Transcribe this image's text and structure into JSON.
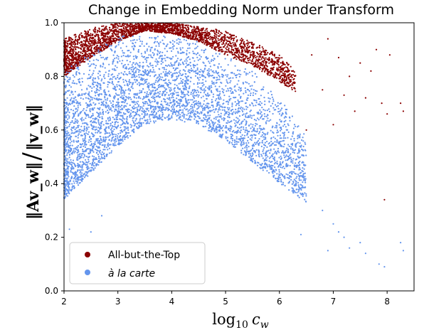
{
  "chart_data": {
    "type": "scatter",
    "title": "Change in Embedding Norm under Transform",
    "xlabel_base": "log",
    "xlabel_sub": "10",
    "xlabel_var": "c",
    "xlabel_var_sub": "w",
    "ylabel_num": "‖Av_w‖",
    "ylabel_den": "‖v_w‖",
    "xlim": [
      2,
      8.5
    ],
    "ylim": [
      0.0,
      1.0
    ],
    "x_ticks": [
      "2",
      "3",
      "4",
      "5",
      "6",
      "7",
      "8"
    ],
    "y_ticks": [
      "0.0",
      "0.2",
      "0.4",
      "0.6",
      "0.8",
      "1.0"
    ],
    "grid": false,
    "legend_position": "lower left",
    "series": [
      {
        "name": "All-but-the-Top",
        "color": "#8b0000",
        "upper_envelope": [
          [
            2.0,
            0.94
          ],
          [
            2.5,
            0.98
          ],
          [
            3.0,
            1.0
          ],
          [
            4.0,
            1.0
          ],
          [
            5.0,
            0.97
          ],
          [
            5.5,
            0.93
          ],
          [
            6.0,
            0.88
          ],
          [
            6.3,
            0.82
          ]
        ],
        "lower_envelope": [
          [
            2.0,
            0.8
          ],
          [
            2.5,
            0.87
          ],
          [
            3.0,
            0.93
          ],
          [
            3.5,
            0.97
          ],
          [
            4.0,
            0.96
          ],
          [
            4.5,
            0.93
          ],
          [
            5.0,
            0.88
          ],
          [
            5.5,
            0.84
          ],
          [
            6.0,
            0.78
          ],
          [
            6.3,
            0.74
          ]
        ],
        "outliers": [
          [
            6.6,
            0.88
          ],
          [
            6.9,
            0.94
          ],
          [
            7.1,
            0.87
          ],
          [
            7.3,
            0.8
          ],
          [
            7.5,
            0.85
          ],
          [
            7.7,
            0.82
          ],
          [
            7.8,
            0.9
          ],
          [
            7.9,
            0.7
          ],
          [
            8.0,
            0.66
          ],
          [
            8.05,
            0.88
          ],
          [
            8.25,
            0.7
          ],
          [
            8.3,
            0.67
          ],
          [
            6.8,
            0.75
          ],
          [
            7.2,
            0.73
          ],
          [
            7.4,
            0.67
          ],
          [
            7.6,
            0.72
          ],
          [
            6.5,
            0.6
          ],
          [
            7.0,
            0.62
          ],
          [
            7.95,
            0.34
          ]
        ]
      },
      {
        "name": "à la carte",
        "color": "#6495ed",
        "upper_envelope": [
          [
            2.0,
            0.82
          ],
          [
            2.5,
            0.9
          ],
          [
            3.0,
            0.95
          ],
          [
            3.5,
            0.97
          ],
          [
            4.0,
            0.96
          ],
          [
            4.5,
            0.93
          ],
          [
            5.0,
            0.88
          ],
          [
            5.5,
            0.82
          ],
          [
            6.0,
            0.73
          ],
          [
            6.5,
            0.58
          ]
        ],
        "lower_envelope": [
          [
            2.0,
            0.34
          ],
          [
            2.5,
            0.44
          ],
          [
            3.0,
            0.54
          ],
          [
            3.5,
            0.62
          ],
          [
            4.0,
            0.64
          ],
          [
            4.5,
            0.62
          ],
          [
            5.0,
            0.56
          ],
          [
            5.5,
            0.48
          ],
          [
            6.0,
            0.4
          ],
          [
            6.5,
            0.33
          ]
        ],
        "outliers": [
          [
            2.1,
            0.23
          ],
          [
            2.5,
            0.22
          ],
          [
            2.7,
            0.28
          ],
          [
            6.4,
            0.21
          ],
          [
            6.8,
            0.3
          ],
          [
            7.0,
            0.25
          ],
          [
            7.2,
            0.2
          ],
          [
            7.3,
            0.16
          ],
          [
            7.5,
            0.18
          ],
          [
            7.6,
            0.14
          ],
          [
            7.85,
            0.1
          ],
          [
            7.95,
            0.09
          ],
          [
            8.25,
            0.18
          ],
          [
            8.3,
            0.15
          ],
          [
            7.1,
            0.22
          ],
          [
            6.9,
            0.15
          ]
        ]
      }
    ]
  }
}
